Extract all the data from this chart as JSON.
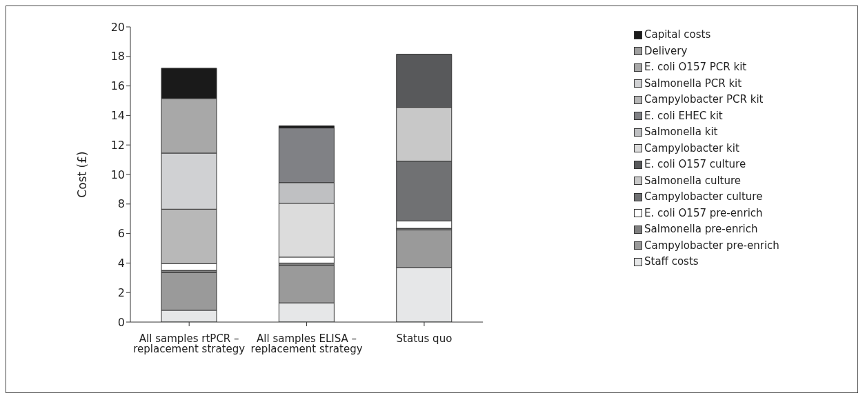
{
  "chart_data": {
    "type": "bar",
    "stacked": true,
    "ylabel": "Cost (£)",
    "categories": [
      "All samples rtPCR – replacement strategy",
      "All samples ELISA – replacement strategy",
      "Status quo"
    ],
    "ylim": [
      0,
      20
    ],
    "yticks": [
      0,
      2,
      4,
      6,
      8,
      10,
      12,
      14,
      16,
      18,
      20
    ],
    "grid": false,
    "legend": "right",
    "series": [
      {
        "name": "Staff costs",
        "color": "#e6e7e8",
        "values": [
          0.8,
          1.3,
          3.7
        ]
      },
      {
        "name": "Campylobacter pre-enrich",
        "color": "#9a9a9a",
        "values": [
          2.55,
          2.55,
          2.55
        ]
      },
      {
        "name": "Salmonella pre-enrich",
        "color": "#808080",
        "values": [
          0.15,
          0.15,
          0.1
        ]
      },
      {
        "name": "E. coli O157 pre-enrich",
        "color": "#ffffff",
        "values": [
          0.45,
          0.4,
          0.5
        ]
      },
      {
        "name": "Campylobacter culture",
        "color": "#707173",
        "values": [
          null,
          null,
          4.05
        ]
      },
      {
        "name": "Salmonella culture",
        "color": "#c8c8c8",
        "values": [
          null,
          null,
          3.65
        ]
      },
      {
        "name": "E. coli O157 culture",
        "color": "#58595b",
        "values": [
          null,
          null,
          3.6
        ]
      },
      {
        "name": "Campylobacter kit",
        "color": "#dcdcdc",
        "values": [
          null,
          3.65,
          null
        ]
      },
      {
        "name": "Salmonella kit",
        "color": "#bfc0c2",
        "values": [
          null,
          1.4,
          null
        ]
      },
      {
        "name": "E. coli EHEC kit",
        "color": "#808185",
        "values": [
          null,
          3.7,
          null
        ]
      },
      {
        "name": "Campylobacter PCR kit",
        "color": "#b8b8b8",
        "values": [
          3.7,
          null,
          null
        ]
      },
      {
        "name": "Salmonella PCR kit",
        "color": "#d0d1d3",
        "values": [
          3.8,
          null,
          null
        ]
      },
      {
        "name": "E. coli O157 PCR kit",
        "color": "#a8a8a8",
        "values": [
          3.7,
          null,
          null
        ]
      },
      {
        "name": "Delivery",
        "color": "#a0a0a0",
        "values": [
          null,
          null,
          null
        ]
      },
      {
        "name": "Capital costs",
        "color": "#1a1a1a",
        "values": [
          2.05,
          0.15,
          null
        ]
      }
    ]
  }
}
